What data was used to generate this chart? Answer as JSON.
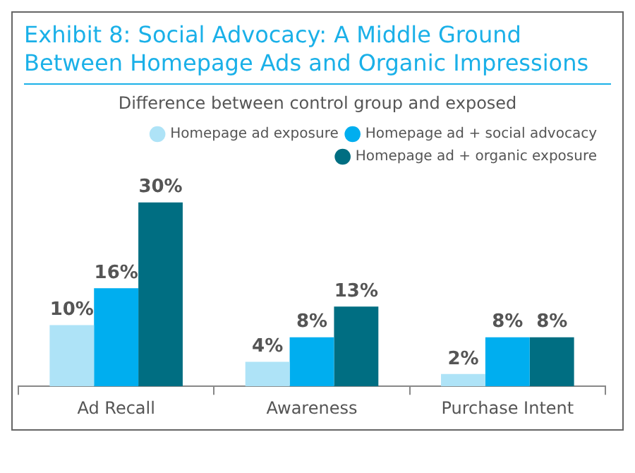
{
  "chart_data": {
    "type": "bar",
    "title": "Exhibit 8: Social Advocacy:  A Middle Ground Between Homepage Ads and Organic Impressions",
    "subtitle": "Difference between control group and exposed",
    "categories": [
      "Ad Recall",
      "Awareness",
      "Purchase Intent"
    ],
    "legend": "top right",
    "series": [
      {
        "name": "Homepage ad exposure",
        "color": "#aee3f7",
        "values": [
          10,
          4,
          2
        ],
        "value_labels": [
          "10%",
          "4%",
          "2%"
        ]
      },
      {
        "name": "Homepage ad + social advocacy",
        "color": "#00aeef",
        "values": [
          16,
          8,
          8
        ],
        "value_labels": [
          "16%",
          "8%",
          "8%"
        ]
      },
      {
        "name": "Homepage ad + organic exposure",
        "color": "#006e82",
        "values": [
          30,
          13,
          8
        ],
        "value_labels": [
          "30%",
          "13%",
          "8%"
        ]
      }
    ]
  }
}
